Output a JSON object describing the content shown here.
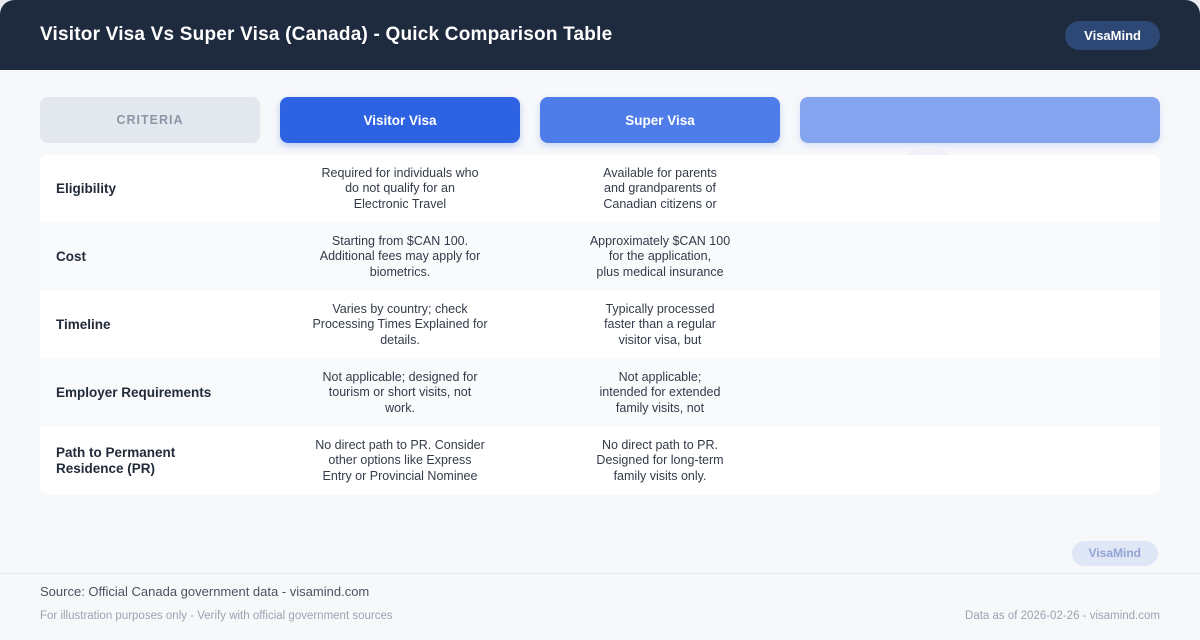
{
  "header": {
    "title": "Visitor Visa Vs Super Visa (Canada) - Quick Comparison Table",
    "brand_badge": "VisaMind"
  },
  "columns": [
    {
      "label": "CRITERIA"
    },
    {
      "label": "Visitor Visa"
    },
    {
      "label": "Super Visa"
    },
    {
      "label": ""
    }
  ],
  "rows": [
    {
      "criteria": "Eligibility",
      "visitor": "Required for individuals who\ndo not qualify for an\nElectronic Travel",
      "super": "Available for parents\nand grandparents of\nCanadian citizens or"
    },
    {
      "criteria": "Cost",
      "visitor": "Starting from $CAN 100.\nAdditional fees may apply for\nbiometrics.",
      "super": "Approximately $CAN 100\nfor the application,\nplus medical insurance"
    },
    {
      "criteria": "Timeline",
      "visitor": "Varies by country; check\nProcessing Times Explained for\ndetails.",
      "super": "Typically processed\nfaster than a regular\nvisitor visa, but"
    },
    {
      "criteria": "Employer Requirements",
      "visitor": "Not applicable; designed for\ntourism or short visits, not\nwork.",
      "super": "Not applicable;\nintended for extended\nfamily visits, not"
    },
    {
      "criteria": "Path to Permanent\nResidence (PR)",
      "visitor": "No direct path to PR. Consider\nother options like Express\nEntry or Provincial Nominee",
      "super": "No direct path to PR.\nDesigned for long-term\nfamily visits only."
    }
  ],
  "footer": {
    "watermark_badge": "VisaMind",
    "source": "Source: Official Canada government data - visamind.com",
    "disclaimer": "For illustration purposes only - Verify with official government sources",
    "data_as_of": "Data as of 2026-02-26 - visamind.com"
  },
  "colors": {
    "topbar_bg": "#1e2a3d",
    "brand_pill_bg": "#2d4875",
    "criteria_chip_bg": "#e3e7ee",
    "visitor_chip_bg": "#2d63e3",
    "super_chip_bg": "#4e7ce9",
    "extra_chip_bg": "#85a4f0",
    "row_bg": "#ffffff",
    "row_alt_bg": "#f8fafc",
    "page_bg": "#f7f8fa",
    "watermark_pill_bg": "#dfe6f6",
    "watermark_text": "#94a4d4"
  }
}
